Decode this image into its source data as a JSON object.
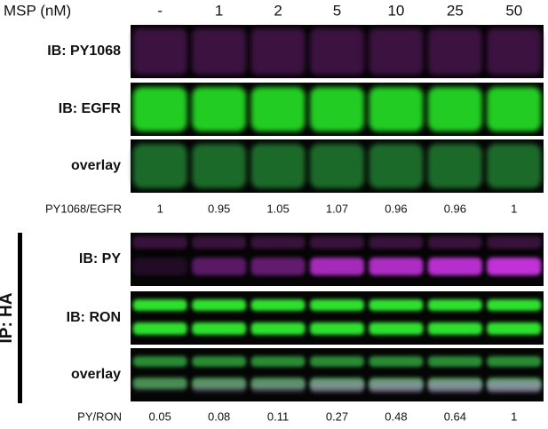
{
  "header": {
    "label": "MSP (nM)",
    "lanes": [
      "-",
      "1",
      "2",
      "5",
      "10",
      "25",
      "50"
    ]
  },
  "panels": [
    {
      "rows": [
        "IB: PY1068",
        "IB: EGFR",
        "overlay"
      ],
      "ratio": {
        "label": "PY1068/EGFR",
        "values": [
          1,
          0.95,
          1.05,
          1.07,
          0.96,
          0.96,
          1
        ]
      }
    },
    {
      "group_label": "IP: HA",
      "rows": [
        "IB: PY",
        "IB: RON",
        "overlay"
      ],
      "ratio": {
        "label": "PY/RON",
        "values": [
          0.05,
          0.08,
          0.11,
          0.27,
          0.48,
          0.64,
          1
        ]
      }
    }
  ]
}
